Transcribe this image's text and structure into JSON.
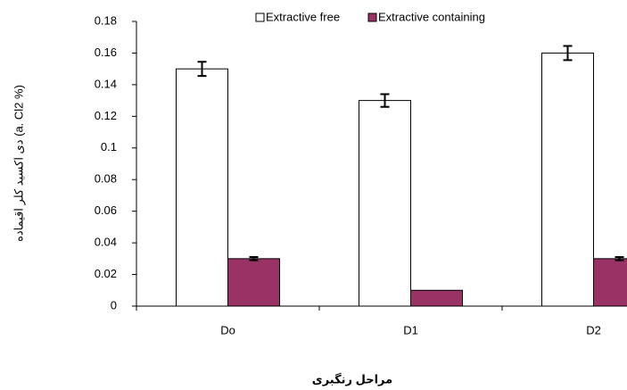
{
  "chart_data": {
    "type": "bar",
    "title_y": "دی اکسید کلر اقیماده (a. Cl2 %)",
    "title_x": "مراحل رنگبری",
    "categories": [
      "Do",
      "D1",
      "D2"
    ],
    "series": [
      {
        "name": "Extractive free",
        "color": "#ffffff",
        "values": [
          0.15,
          0.13,
          0.16
        ],
        "errors": [
          0.0045,
          0.004,
          0.0045
        ]
      },
      {
        "name": "Extractive containing",
        "color": "#993366",
        "values": [
          0.03,
          0.01,
          0.03
        ],
        "errors": [
          0.001,
          null,
          0.001
        ]
      }
    ],
    "ylim": [
      0,
      0.18
    ],
    "yticks": [
      0,
      0.02,
      0.04,
      0.06,
      0.08,
      0.1,
      0.12,
      0.14,
      0.16,
      0.18
    ],
    "legend": "top"
  }
}
